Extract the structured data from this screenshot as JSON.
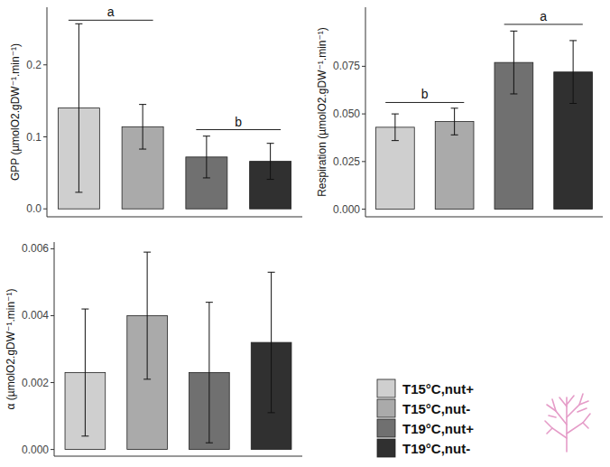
{
  "chart_data": [
    {
      "type": "bar",
      "y_label": "GPP (µmolO2.gDW⁻¹.min⁻¹)",
      "categories": [
        "T15°C,nut+",
        "T15°C,nut-",
        "T19°C,nut+",
        "T19°C,nut-"
      ],
      "values": [
        0.14,
        0.114,
        0.072,
        0.066
      ],
      "errors": [
        0.117,
        0.031,
        0.029,
        0.025
      ],
      "colors": [
        "#cfcfcf",
        "#aaaaaa",
        "#707070",
        "#303030"
      ],
      "ylim": [
        -0.011,
        0.28
      ],
      "yticks": [
        {
          "value": 0,
          "label": "0.0"
        },
        0.1,
        0.2
      ],
      "tick_labels": "y",
      "legend": "bottom-right",
      "annotations": [
        {
          "text": "a",
          "from": 0,
          "to": 1,
          "y": 0.262
        },
        {
          "text": "b",
          "from": 2,
          "to": 3,
          "y": 0.11
        }
      ]
    },
    {
      "type": "bar",
      "y_label": "Respiration (µmolO2.gDW⁻¹.min⁻¹)",
      "values": [
        0.043,
        0.046,
        0.077,
        0.072
      ],
      "errors": [
        0.007,
        0.007,
        0.0165,
        0.0165
      ],
      "colors": [
        "#cfcfcf",
        "#aaaaaa",
        "#707070",
        "#303030"
      ],
      "ylim": [
        -0.004,
        0.106
      ],
      "yticks": [
        {
          "value": 0,
          "label": "0.000"
        },
        0.025,
        {
          "value": 0.05,
          "label": "0.050"
        },
        0.075
      ],
      "tick_labels": "y",
      "annotations": [
        {
          "text": "b",
          "from": 0,
          "to": 1,
          "y": 0.056
        },
        {
          "text": "a",
          "from": 2,
          "to": 3,
          "y": 0.097
        }
      ]
    },
    {
      "type": "bar",
      "y_label": "α (µmolO2.gDW⁻¹.min⁻¹)",
      "values": [
        0.0023,
        0.004,
        0.0023,
        0.0032
      ],
      "errors": [
        0.0019,
        0.0019,
        0.0021,
        0.0021
      ],
      "colors": [
        "#cfcfcf",
        "#aaaaaa",
        "#707070",
        "#303030"
      ],
      "ylim": [
        -0.0002,
        0.0062
      ],
      "yticks": [
        {
          "value": 0,
          "label": "0.000"
        },
        0.002,
        0.004,
        0.006
      ],
      "tick_labels": "y"
    }
  ]
}
